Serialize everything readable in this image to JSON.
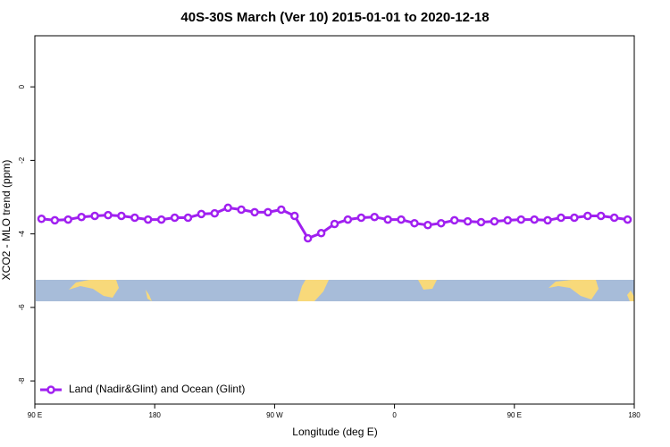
{
  "chart_data": {
    "type": "line",
    "title": "40S-30S March (Ver 10)   2015-01-01 to 2020-12-18",
    "x_label": "Longitude (deg E)",
    "y_label": "XCO2 - MLO trend (ppm)",
    "xlim": [
      90,
      540
    ],
    "ylim": [
      -8.63,
      1.39
    ],
    "xticks": [
      {
        "value": 90,
        "label": "90 E"
      },
      180,
      {
        "value": 270,
        "label": "90 W"
      },
      {
        "value": 360,
        "label": "0"
      },
      {
        "value": 450,
        "label": "90 E"
      },
      {
        "value": 540,
        "label": "180"
      }
    ],
    "yticks": [
      0,
      -2,
      -4,
      -6,
      -8
    ],
    "legend": "bottom-left",
    "series": [
      {
        "name": "Land (Nadir&Glint) and Ocean (Glint)",
        "color": "#a020f0",
        "x": [
          95,
          105,
          115,
          125,
          135,
          145,
          155,
          165,
          175,
          185,
          195,
          205,
          215,
          225,
          235,
          245,
          255,
          265,
          275,
          285,
          295,
          305,
          315,
          325,
          335,
          345,
          355,
          365,
          375,
          385,
          395,
          405,
          415,
          425,
          435,
          445,
          455,
          465,
          475,
          485,
          495,
          505,
          515,
          525,
          535
        ],
        "values": [
          -3.59,
          -3.63,
          -3.61,
          -3.54,
          -3.51,
          -3.49,
          -3.51,
          -3.56,
          -3.61,
          -3.61,
          -3.56,
          -3.56,
          -3.46,
          -3.44,
          -3.29,
          -3.34,
          -3.41,
          -3.41,
          -3.34,
          -3.51,
          -4.12,
          -3.98,
          -3.73,
          -3.61,
          -3.56,
          -3.54,
          -3.61,
          -3.61,
          -3.71,
          -3.76,
          -3.71,
          -3.63,
          -3.66,
          -3.68,
          -3.66,
          -3.63,
          -3.61,
          -3.61,
          -3.63,
          -3.56,
          -3.56,
          -3.51,
          -3.51,
          -3.56,
          -3.61
        ]
      }
    ]
  }
}
